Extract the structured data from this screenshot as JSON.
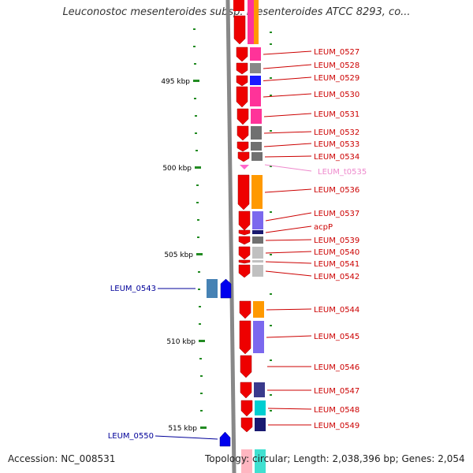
{
  "header": {
    "title": "Leuconostoc mesenteroides subsp. mesenteroides ATCC 8293, co..."
  },
  "footer": {
    "accession": "Accession: NC_008531",
    "topology": "Topology: circular; Length: 2,038,396 bp; Genes: 2,054"
  },
  "colors": {
    "forward_gene": "#ee0000",
    "reverse_gene": "#0000ee",
    "label_right": "#cc0000",
    "label_left": "#000099",
    "trna_label": "#ee88cc",
    "tick": "#228b22",
    "backbone": "#888888"
  },
  "scale": {
    "unit": "kbp",
    "ticks": [
      {
        "label": "495 kbp"
      },
      {
        "label": "500 kbp"
      },
      {
        "label": "505 kbp"
      },
      {
        "label": "510 kbp"
      },
      {
        "label": "515 kbp"
      }
    ]
  },
  "genes_right": [
    {
      "label": "LEUM_0527",
      "cog": "#ff3399"
    },
    {
      "label": "LEUM_0528",
      "cog": "#888888"
    },
    {
      "label": "LEUM_0529",
      "cog": "#1a1aff"
    },
    {
      "label": "LEUM_0530",
      "cog": "#ff3399"
    },
    {
      "label": "LEUM_0531",
      "cog": "#ff3399"
    },
    {
      "label": "LEUM_0532",
      "cog": "#707070"
    },
    {
      "label": "LEUM_0533",
      "cog": "#707070"
    },
    {
      "label": "LEUM_0534",
      "cog": "#707070"
    },
    {
      "label": "LEUM_t0535",
      "cog": "",
      "type": "tRNA"
    },
    {
      "label": "LEUM_0536",
      "cog": "#ff9900"
    },
    {
      "label": "LEUM_0537",
      "cog": "#7b68ee"
    },
    {
      "label": "acpP",
      "cog": "#191970"
    },
    {
      "label": "LEUM_0539",
      "cog": "#707070"
    },
    {
      "label": "LEUM_0540",
      "cog": "#c0c0c0"
    },
    {
      "label": "LEUM_0541",
      "cog": "#c0c0c0"
    },
    {
      "label": "LEUM_0542",
      "cog": "#c0c0c0"
    },
    {
      "label": "LEUM_0544",
      "cog": "#ff9900"
    },
    {
      "label": "LEUM_0545",
      "cog": "#7b68ee"
    },
    {
      "label": "LEUM_0546",
      "cog": ""
    },
    {
      "label": "LEUM_0547",
      "cog": "#3a3a8c"
    },
    {
      "label": "LEUM_0548",
      "cog": "#00ced1"
    },
    {
      "label": "LEUM_0549",
      "cog": "#191970"
    }
  ],
  "genes_left": [
    {
      "label": "LEUM_0543",
      "cog": "#4682b4"
    },
    {
      "label": "LEUM_0550",
      "cog": ""
    }
  ]
}
